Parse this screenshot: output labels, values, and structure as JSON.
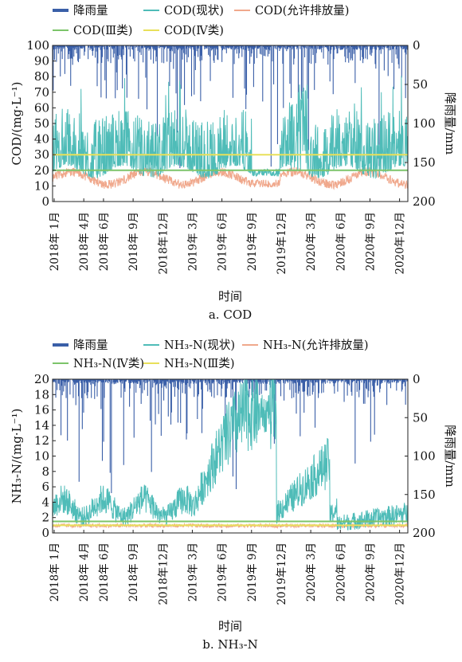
{
  "chart_data": [
    {
      "type": "line",
      "caption": "a. COD",
      "xlabel": "时间",
      "ylabel_left": "COD/(mg·L⁻¹)",
      "ylabel_right": "降雨量/mm",
      "ylim_left": [
        0,
        100
      ],
      "yticks_left": [
        0,
        10,
        20,
        30,
        40,
        50,
        60,
        70,
        80,
        90,
        100
      ],
      "ylim_right": [
        200,
        0
      ],
      "yticks_right": [
        0,
        50,
        100,
        150,
        200
      ],
      "x_tick_labels": [
        "2018年 1月",
        "2018年 4月",
        "2018年 6月",
        "2018年 9月",
        "2018年12月",
        "2019年 3月",
        "2019年 6月",
        "2019年 9月",
        "2019年12月",
        "2020年 3月",
        "2020年 6月",
        "2020年 9月",
        "2020年12月"
      ],
      "legend": [
        "降雨量",
        "COD(现状)",
        "COD(允许排放量)",
        "COD(Ⅲ类)",
        "COD(Ⅳ类)"
      ],
      "colors": {
        "rain": "#3a5fa8",
        "current": "#4fbcb8",
        "allowed": "#f0a88c",
        "class3": "#7cc46a",
        "class4": "#e8e05a"
      },
      "series": [
        {
          "name": "COD(Ⅲ类)",
          "constant": 20
        },
        {
          "name": "COD(Ⅳ类)",
          "constant": 30
        }
      ]
    },
    {
      "type": "line",
      "caption": "b. NH₃-N",
      "xlabel": "时间",
      "ylabel_left": "NH₃-N/(mg·L⁻¹)",
      "ylabel_right": "降雨量/mm",
      "ylim_left": [
        0,
        20
      ],
      "yticks_left": [
        0,
        2,
        4,
        6,
        8,
        10,
        12,
        14,
        16,
        18,
        20
      ],
      "ylim_right": [
        200,
        0
      ],
      "yticks_right": [
        0,
        50,
        100,
        150,
        200
      ],
      "x_tick_labels": [
        "2018年 1月",
        "2018年 4月",
        "2018年 6月",
        "2018年 9月",
        "2018年12月",
        "2019年 3月",
        "2019年 6月",
        "2019年 9月",
        "2019年12月",
        "2020年 3月",
        "2020年 6月",
        "2020年 9月",
        "2020年12月"
      ],
      "legend": [
        "降雨量",
        "NH₃-N(现状)",
        "NH₃-N(允许排放量)",
        "NH₃-N(Ⅳ类)",
        "NH₃-N(Ⅲ类)"
      ],
      "colors": {
        "rain": "#3a5fa8",
        "current": "#4fbcb8",
        "allowed": "#f0a88c",
        "class4": "#7cc46a",
        "class3": "#e8e05a"
      },
      "series": [
        {
          "name": "NH₃-N(Ⅳ类)",
          "constant": 1.5
        },
        {
          "name": "NH₃-N(Ⅲ类)",
          "constant": 1.0
        }
      ]
    }
  ]
}
